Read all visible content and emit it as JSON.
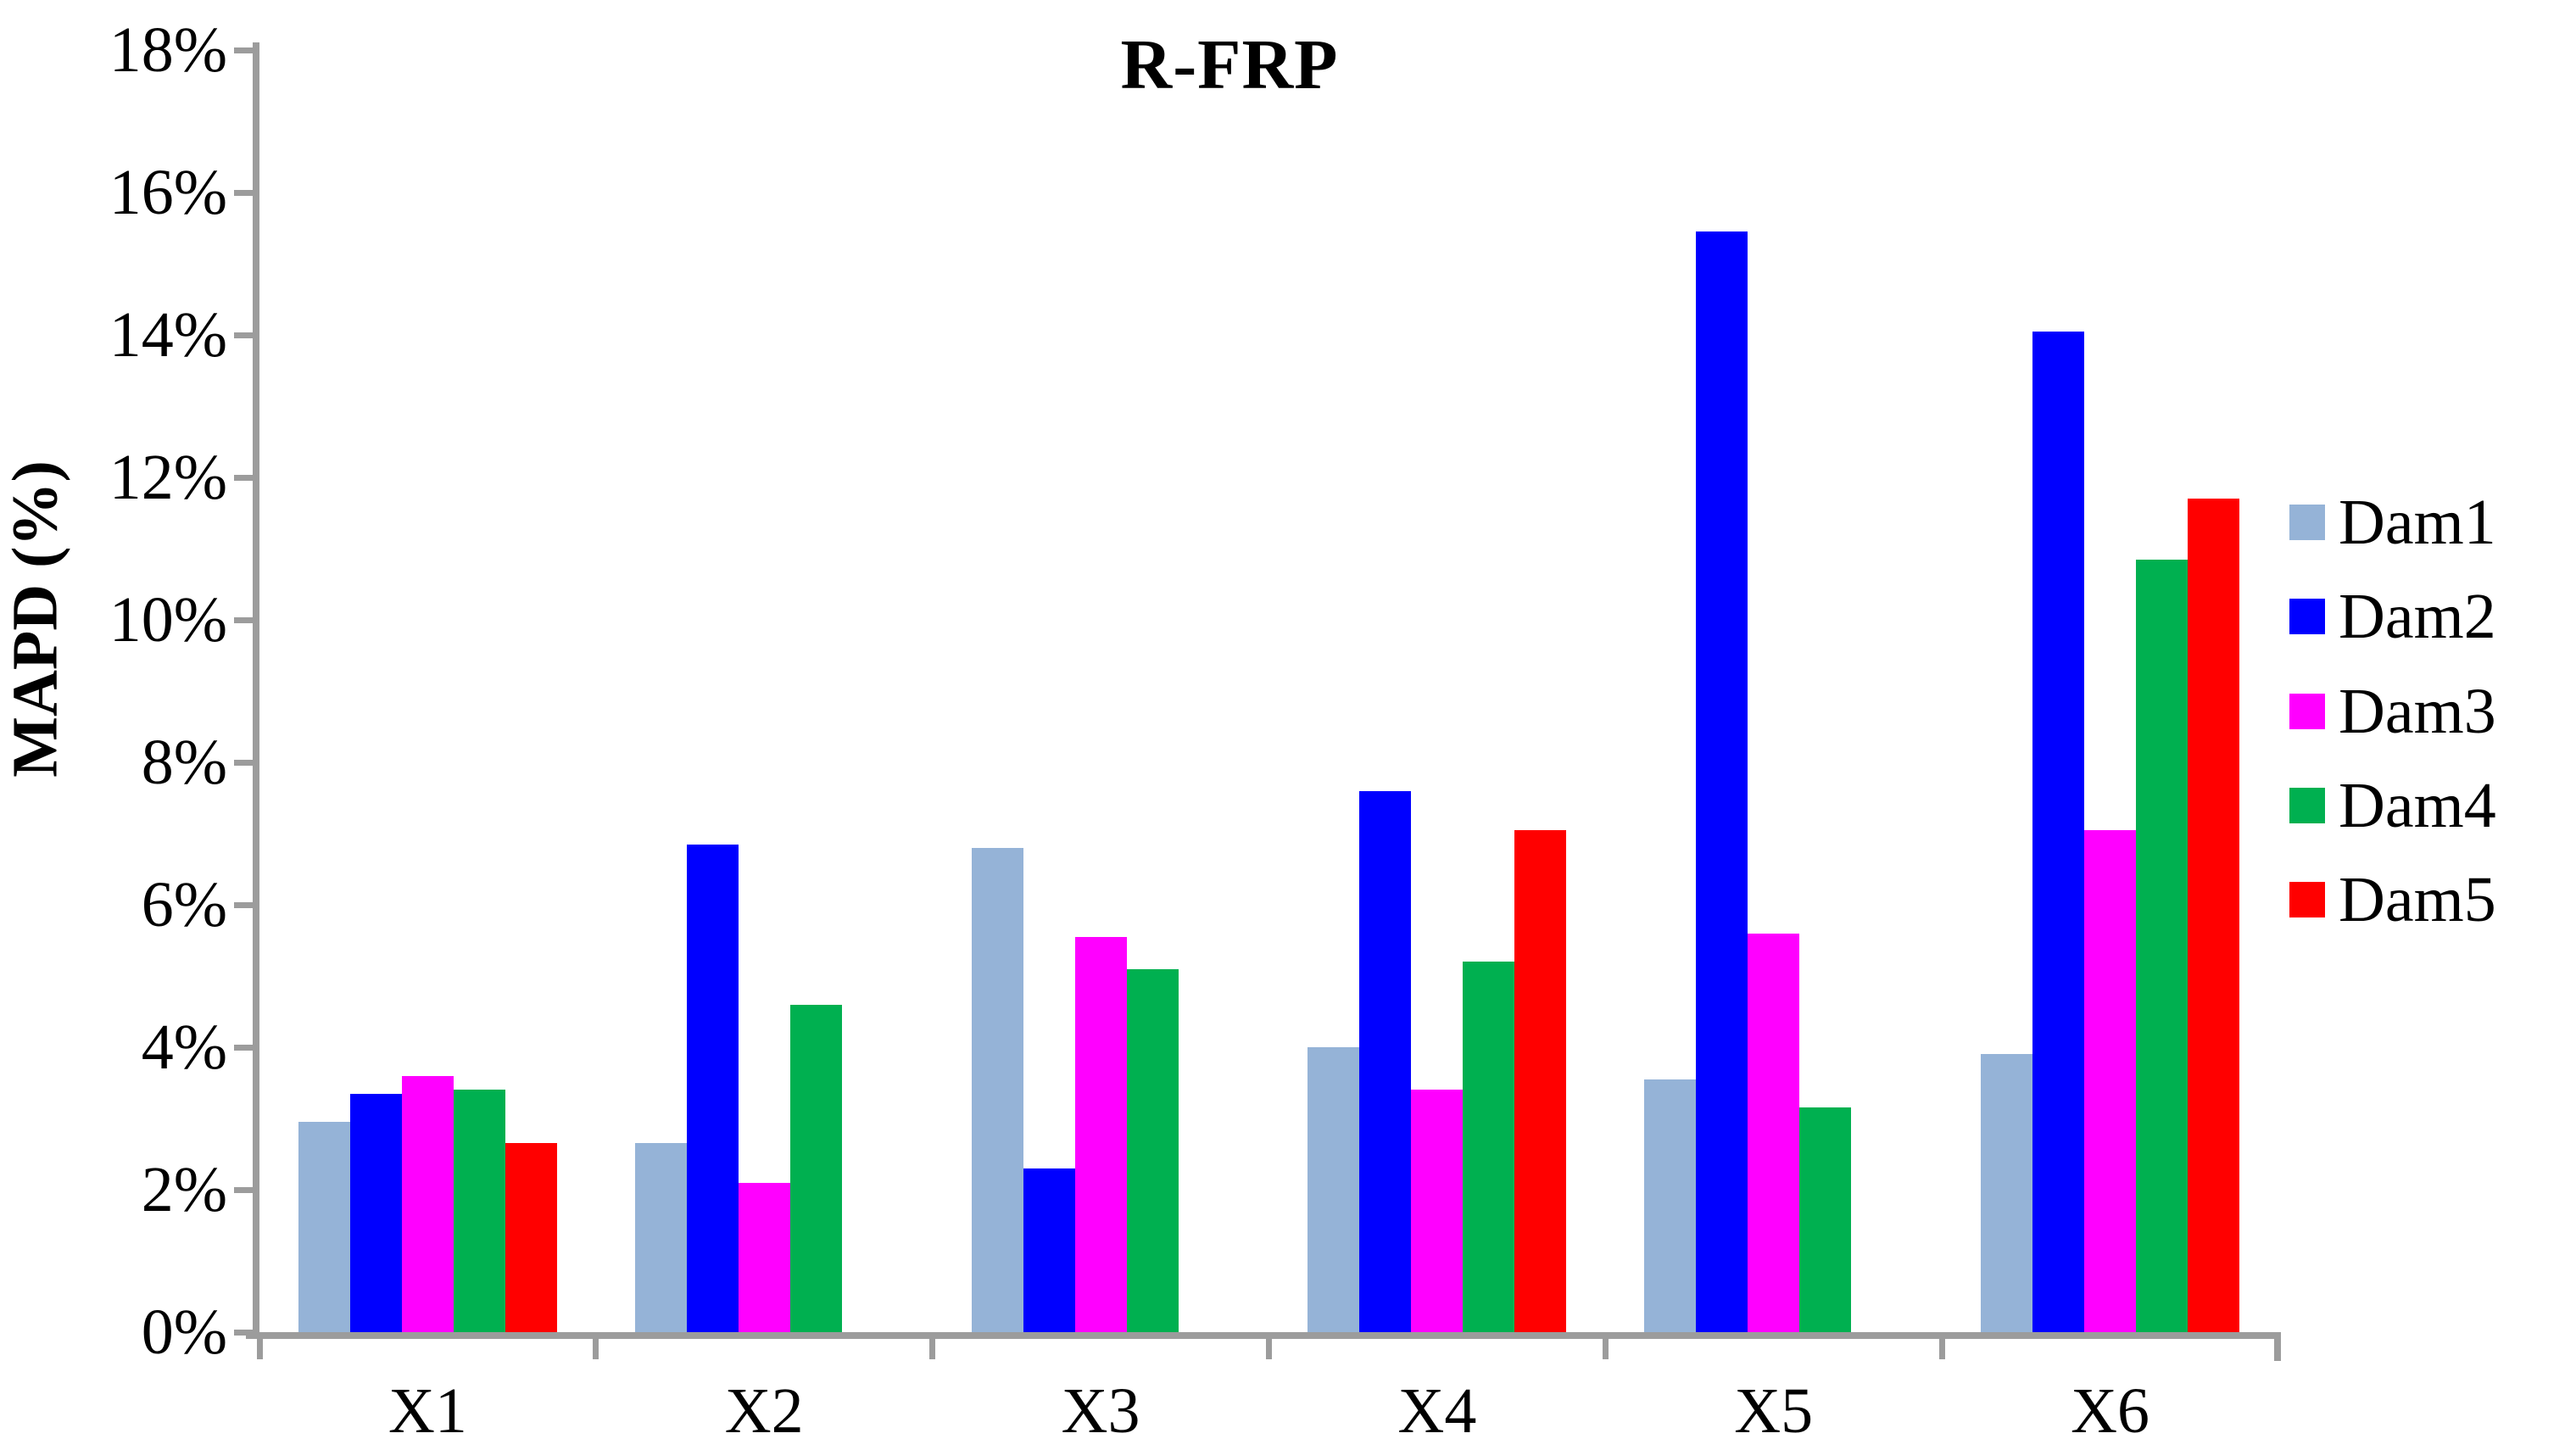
{
  "title": "R-FRP",
  "y_axis": {
    "label": "MAPD (%)",
    "tick_labels": [
      "0%",
      "2%",
      "4%",
      "6%",
      "8%",
      "10%",
      "12%",
      "14%",
      "16%",
      "18%"
    ],
    "min": 0,
    "max": 18,
    "step": 2
  },
  "x_axis": {
    "categories": [
      "X1",
      "X2",
      "X3",
      "X4",
      "X5",
      "X6"
    ]
  },
  "legend": {
    "position": "right",
    "items": [
      {
        "label": "Dam1",
        "color": "#95B3D7"
      },
      {
        "label": "Dam2",
        "color": "#0000FF"
      },
      {
        "label": "Dam3",
        "color": "#FF00FF"
      },
      {
        "label": "Dam4",
        "color": "#00B050"
      },
      {
        "label": "Dam5",
        "color": "#FF0000"
      }
    ]
  },
  "colors": {
    "axis": "#9C9C9C",
    "text": "#000000",
    "background": "#FFFFFF"
  },
  "chart_data": {
    "type": "bar",
    "title": "R-FRP",
    "xlabel": "",
    "ylabel": "MAPD (%)",
    "ylim": [
      0,
      18
    ],
    "y_tick_step": 2,
    "y_tick_format": "percent",
    "grid": false,
    "legend_position": "right",
    "categories": [
      "X1",
      "X2",
      "X3",
      "X4",
      "X5",
      "X6"
    ],
    "series": [
      {
        "name": "Dam1",
        "color": "#95B3D7",
        "values": [
          2.95,
          2.65,
          6.8,
          4.0,
          3.55,
          3.9
        ]
      },
      {
        "name": "Dam2",
        "color": "#0000FF",
        "values": [
          3.35,
          6.85,
          2.3,
          7.6,
          15.45,
          14.05
        ]
      },
      {
        "name": "Dam3",
        "color": "#FF00FF",
        "values": [
          3.6,
          2.1,
          5.55,
          3.4,
          5.6,
          7.05
        ]
      },
      {
        "name": "Dam4",
        "color": "#00B050",
        "values": [
          3.4,
          4.6,
          5.1,
          5.2,
          3.15,
          10.85
        ]
      },
      {
        "name": "Dam5",
        "color": "#FF0000",
        "values": [
          2.65,
          null,
          null,
          7.05,
          null,
          11.7
        ]
      }
    ]
  }
}
